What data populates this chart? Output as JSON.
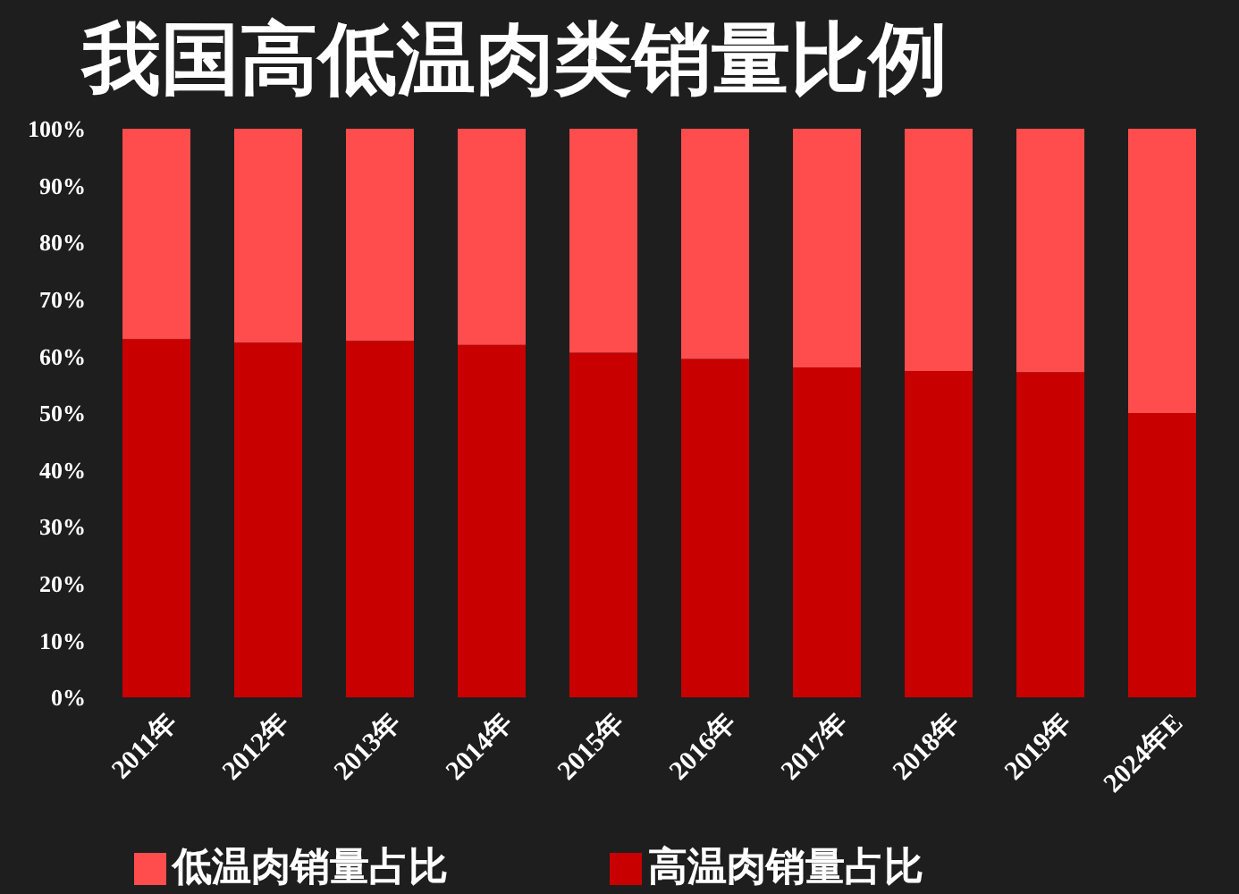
{
  "chart_data": {
    "type": "bar",
    "title": "我国高低温肉类销量比例",
    "categories": [
      "2011年",
      "2012年",
      "2013年",
      "2014年",
      "2015年",
      "2016年",
      "2017年",
      "2018年",
      "2019年",
      "2024年E"
    ],
    "stacked": true,
    "series": [
      {
        "name": "高温肉销量占比",
        "color": "#c80000",
        "values": [
          63,
          62.4,
          62.7,
          62,
          60.6,
          59.5,
          58,
          57.4,
          57.2,
          50
        ]
      },
      {
        "name": "低温肉销量占比",
        "color": "#ff4d4d",
        "values": [
          37,
          37.6,
          37.3,
          38,
          39.4,
          40.5,
          42,
          42.6,
          42.8,
          50
        ]
      }
    ],
    "ylim": [
      0,
      100
    ],
    "yticks": [
      {
        "value": 0,
        "label": "0%"
      },
      {
        "value": 10,
        "label": "10%"
      },
      {
        "value": 20,
        "label": "20%"
      },
      {
        "value": 30,
        "label": "30%"
      },
      {
        "value": 40,
        "label": "40%"
      },
      {
        "value": 50,
        "label": "50%"
      },
      {
        "value": 60,
        "label": "60%"
      },
      {
        "value": 70,
        "label": "70%"
      },
      {
        "value": 80,
        "label": "80%"
      },
      {
        "value": 90,
        "label": "90%"
      },
      {
        "value": 100,
        "label": "100%"
      }
    ],
    "grid": false,
    "legend": "bottom"
  }
}
